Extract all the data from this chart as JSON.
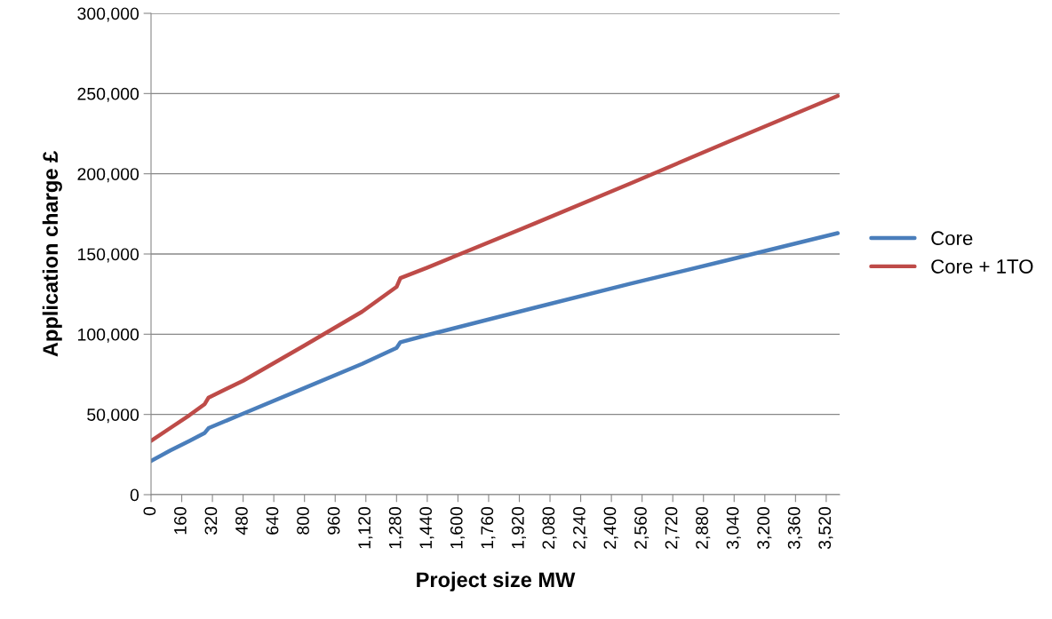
{
  "chart_data": {
    "type": "line",
    "xlabel": "Project size MW",
    "ylabel": "Application charge £",
    "xlim": [
      0,
      3590
    ],
    "xticks": [
      {
        "value": 0,
        "label": "0"
      },
      {
        "value": 160,
        "label": "160"
      },
      {
        "value": 320,
        "label": "320"
      },
      {
        "value": 480,
        "label": "480"
      },
      {
        "value": 640,
        "label": "640"
      },
      {
        "value": 800,
        "label": "800"
      },
      {
        "value": 960,
        "label": "960"
      },
      {
        "value": 1120,
        "label": "1,120"
      },
      {
        "value": 1280,
        "label": "1,280"
      },
      {
        "value": 1440,
        "label": "1,440"
      },
      {
        "value": 1600,
        "label": "1,600"
      },
      {
        "value": 1760,
        "label": "1,760"
      },
      {
        "value": 1920,
        "label": "1,920"
      },
      {
        "value": 2080,
        "label": "2,080"
      },
      {
        "value": 2240,
        "label": "2,240"
      },
      {
        "value": 2400,
        "label": "2,400"
      },
      {
        "value": 2560,
        "label": "2,560"
      },
      {
        "value": 2720,
        "label": "2,720"
      },
      {
        "value": 2880,
        "label": "2,880"
      },
      {
        "value": 3040,
        "label": "3,040"
      },
      {
        "value": 3200,
        "label": "3,200"
      },
      {
        "value": 3360,
        "label": "3,360"
      },
      {
        "value": 3520,
        "label": "3,520"
      }
    ],
    "ylim": [
      0,
      300000
    ],
    "yticks": [
      {
        "value": 0,
        "label": "0"
      },
      {
        "value": 50000,
        "label": "50,000"
      },
      {
        "value": 100000,
        "label": "100,000"
      },
      {
        "value": 150000,
        "label": "150,000"
      },
      {
        "value": 200000,
        "label": "200,000"
      },
      {
        "value": 250000,
        "label": "250,000"
      },
      {
        "value": 300000,
        "label": "300,000"
      }
    ],
    "grid": "y",
    "legend": "right",
    "line_style": "solid",
    "marker": "none",
    "series": [
      {
        "name": "Core",
        "color": "#4a7ebb",
        "x": [
          0,
          100,
          200,
          280,
          300,
          480,
          800,
          1100,
          1280,
          1300,
          1440,
          2000,
          2500,
          3000,
          3580
        ],
        "values": [
          21000,
          27500,
          33500,
          38500,
          41500,
          50500,
          66500,
          81500,
          91500,
          95000,
          99500,
          116500,
          131500,
          146000,
          163000
        ]
      },
      {
        "name": "Core + 1TO",
        "color": "#be4b48",
        "x": [
          0,
          100,
          200,
          280,
          300,
          480,
          800,
          1100,
          1280,
          1300,
          1440,
          2000,
          2500,
          3000,
          3580
        ],
        "values": [
          33500,
          41500,
          49500,
          56500,
          60500,
          71000,
          93000,
          114000,
          129500,
          135000,
          141500,
          169000,
          194000,
          219500,
          248500
        ]
      }
    ]
  }
}
